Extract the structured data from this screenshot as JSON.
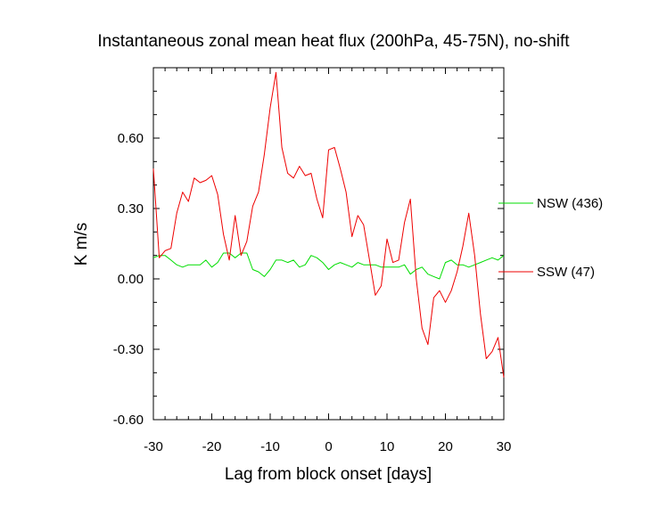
{
  "chart_data": {
    "type": "line",
    "title": "Instantaneous zonal mean heat flux (200hPa, 45-75N), no-shift",
    "xlabel": "Lag from block onset [days]",
    "ylabel": "K m/s",
    "xlim": [
      -30,
      30
    ],
    "ylim": [
      -0.6,
      0.9
    ],
    "x_ticks": [
      -30,
      -20,
      -10,
      0,
      10,
      20,
      30
    ],
    "x_tick_labels": [
      "-30",
      "-20",
      "-10",
      "0",
      "10",
      "20",
      "30"
    ],
    "y_ticks": [
      -0.6,
      -0.3,
      0.0,
      0.3,
      0.6
    ],
    "y_tick_labels": [
      "-0.60",
      "-0.30",
      "0.00",
      "0.30",
      "0.60"
    ],
    "grid": false,
    "legend_position": "right",
    "series": [
      {
        "name": "NSW (436)",
        "color": "#00dd00",
        "x": [
          -30,
          -29,
          -28,
          -27,
          -26,
          -25,
          -24,
          -23,
          -22,
          -21,
          -20,
          -19,
          -18,
          -17,
          -16,
          -15,
          -14,
          -13,
          -12,
          -11,
          -10,
          -9,
          -8,
          -7,
          -6,
          -5,
          -4,
          -3,
          -2,
          -1,
          0,
          1,
          2,
          3,
          4,
          5,
          6,
          7,
          8,
          9,
          10,
          11,
          12,
          13,
          14,
          15,
          16,
          17,
          18,
          19,
          20,
          21,
          22,
          23,
          24,
          25,
          26,
          27,
          28,
          29,
          30
        ],
        "y": [
          0.09,
          0.1,
          0.1,
          0.08,
          0.06,
          0.05,
          0.06,
          0.06,
          0.06,
          0.08,
          0.05,
          0.07,
          0.11,
          0.11,
          0.09,
          0.11,
          0.11,
          0.04,
          0.03,
          0.01,
          0.04,
          0.08,
          0.08,
          0.07,
          0.08,
          0.05,
          0.06,
          0.1,
          0.09,
          0.07,
          0.04,
          0.06,
          0.07,
          0.06,
          0.05,
          0.07,
          0.06,
          0.06,
          0.06,
          0.05,
          0.05,
          0.05,
          0.05,
          0.06,
          0.02,
          0.04,
          0.05,
          0.02,
          0.01,
          0.0,
          0.07,
          0.08,
          0.06,
          0.06,
          0.05,
          0.06,
          0.07,
          0.08,
          0.09,
          0.08,
          0.1
        ]
      },
      {
        "name": "SSW (47)",
        "color": "#ee0000",
        "x": [
          -30,
          -29,
          -28,
          -27,
          -26,
          -25,
          -24,
          -23,
          -22,
          -21,
          -20,
          -19,
          -18,
          -17,
          -16,
          -15,
          -14,
          -13,
          -12,
          -11,
          -10,
          -9,
          -8,
          -7,
          -6,
          -5,
          -4,
          -3,
          -2,
          -1,
          0,
          1,
          2,
          3,
          4,
          5,
          6,
          7,
          8,
          9,
          10,
          11,
          12,
          13,
          14,
          15,
          16,
          17,
          18,
          19,
          20,
          21,
          22,
          23,
          24,
          25,
          26,
          27,
          28,
          29,
          30
        ],
        "y": [
          0.47,
          0.09,
          0.12,
          0.13,
          0.28,
          0.37,
          0.33,
          0.43,
          0.41,
          0.42,
          0.44,
          0.36,
          0.19,
          0.08,
          0.27,
          0.1,
          0.16,
          0.31,
          0.37,
          0.53,
          0.73,
          0.88,
          0.56,
          0.45,
          0.43,
          0.48,
          0.44,
          0.45,
          0.34,
          0.26,
          0.55,
          0.56,
          0.47,
          0.37,
          0.18,
          0.27,
          0.23,
          0.08,
          -0.07,
          -0.03,
          0.17,
          0.07,
          0.08,
          0.24,
          0.34,
          0.0,
          -0.21,
          -0.28,
          -0.08,
          -0.05,
          -0.1,
          -0.05,
          0.03,
          0.14,
          0.28,
          0.1,
          -0.15,
          -0.34,
          -0.31,
          -0.25,
          -0.42
        ]
      }
    ]
  }
}
